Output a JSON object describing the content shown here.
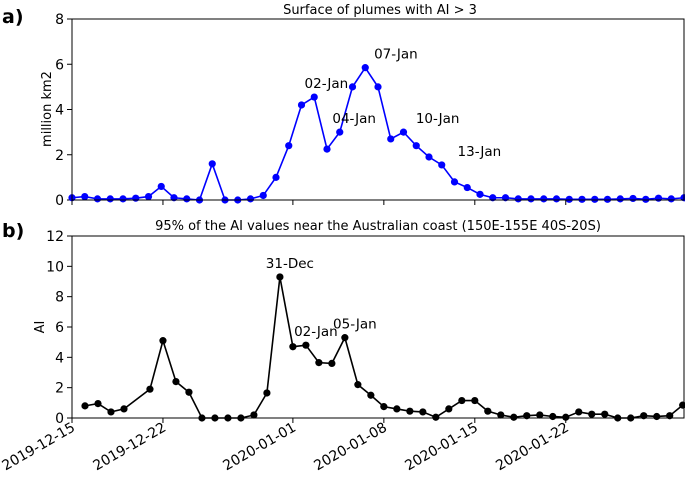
{
  "panel_labels": [
    "a)",
    "b)"
  ],
  "chart_data": [
    {
      "type": "line",
      "title": "Surface of plumes with AI > 3",
      "xlabel": "",
      "ylabel": "million km2",
      "ylim": [
        0,
        8
      ],
      "yticks": [
        0,
        2,
        4,
        6,
        8
      ],
      "xlim": [
        "2019-12-15",
        "2020-01-28"
      ],
      "grid": false,
      "color": "#0000ff",
      "series": [
        {
          "values": [
            0.1,
            0.15,
            0.05,
            0.05,
            0.05,
            0.08,
            0.15,
            0.6,
            0.1,
            0.05,
            0.0,
            1.6,
            0.0,
            0.0,
            0.05,
            0.2,
            1.0,
            2.4,
            4.2,
            4.55,
            2.25,
            3.0,
            5.0,
            5.85,
            5.0,
            2.7,
            3.0,
            2.4,
            1.9,
            1.55,
            0.8,
            0.55,
            0.25,
            0.1,
            0.1,
            0.05,
            0.05,
            0.05,
            0.05,
            0.03,
            0.03,
            0.03,
            0.03,
            0.05,
            0.07,
            0.03,
            0.08,
            0.05,
            0.1
          ]
        }
      ],
      "annotations": [
        {
          "text": "02-Jan",
          "x": "2020-01-02",
          "y": 4.55
        },
        {
          "text": "04-Jan",
          "x": "2020-01-04",
          "y": 3.0
        },
        {
          "text": "07-Jan",
          "x": "2020-01-07",
          "y": 5.85
        },
        {
          "text": "10-Jan",
          "x": "2020-01-10",
          "y": 3.0
        },
        {
          "text": "13-Jan",
          "x": "2020-01-13",
          "y": 1.55
        }
      ]
    },
    {
      "type": "line",
      "title": "95% of the AI values near the Australian coast (150E-155E 40S-20S)",
      "xlabel": "",
      "ylabel": "AI",
      "ylim": [
        0,
        12
      ],
      "yticks": [
        0,
        2,
        4,
        6,
        8,
        10,
        12
      ],
      "xlim": [
        "2019-12-15",
        "2020-01-28"
      ],
      "xticks": [
        "2019-12-15",
        "2019-12-22",
        "2020-01-01",
        "2020-01-08",
        "2020-01-15",
        "2020-01-22"
      ],
      "grid": false,
      "color": "#000000",
      "series": [
        {
          "points": [
            [
              "2019-12-16",
              0.8
            ],
            [
              "2019-12-17",
              0.95
            ],
            [
              "2019-12-18",
              0.4
            ],
            [
              "2019-12-19",
              0.6
            ],
            [
              "2019-12-21",
              1.9
            ],
            [
              "2019-12-22",
              5.1
            ],
            [
              "2019-12-23",
              2.4
            ],
            [
              "2019-12-24",
              1.7
            ],
            [
              "2019-12-25",
              0.0
            ],
            [
              "2019-12-26",
              0.0
            ],
            [
              "2019-12-27",
              0.0
            ],
            [
              "2019-12-28",
              0.0
            ],
            [
              "2019-12-29",
              0.2
            ],
            [
              "2019-12-30",
              1.65
            ],
            [
              "2019-12-31",
              9.3
            ],
            [
              "2020-01-01",
              4.7
            ],
            [
              "2020-01-02",
              4.8
            ],
            [
              "2020-01-03",
              3.65
            ],
            [
              "2020-01-04",
              3.6
            ],
            [
              "2020-01-05",
              5.3
            ],
            [
              "2020-01-06",
              2.2
            ],
            [
              "2020-01-07",
              1.5
            ],
            [
              "2020-01-08",
              0.75
            ],
            [
              "2020-01-09",
              0.6
            ],
            [
              "2020-01-10",
              0.45
            ],
            [
              "2020-01-11",
              0.4
            ],
            [
              "2020-01-12",
              0.05
            ],
            [
              "2020-01-13",
              0.6
            ],
            [
              "2020-01-14",
              1.15
            ],
            [
              "2020-01-15",
              1.15
            ],
            [
              "2020-01-16",
              0.45
            ],
            [
              "2020-01-17",
              0.2
            ],
            [
              "2020-01-18",
              0.05
            ],
            [
              "2020-01-19",
              0.15
            ],
            [
              "2020-01-20",
              0.2
            ],
            [
              "2020-01-21",
              0.1
            ],
            [
              "2020-01-22",
              0.05
            ],
            [
              "2020-01-23",
              0.4
            ],
            [
              "2020-01-24",
              0.25
            ],
            [
              "2020-01-25",
              0.25
            ],
            [
              "2020-01-26",
              0.0
            ],
            [
              "2020-01-27",
              0.0
            ],
            [
              "2020-01-28",
              0.15
            ],
            [
              "2020-01-29",
              0.1
            ],
            [
              "2020-01-30",
              0.15
            ],
            [
              "2020-01-31",
              0.85
            ]
          ]
        }
      ],
      "annotations": [
        {
          "text": "31-Dec",
          "x": "2019-12-31",
          "y": 9.3
        },
        {
          "text": "02-Jan",
          "x": "2020-01-02",
          "y": 4.8
        },
        {
          "text": "05-Jan",
          "x": "2020-01-05",
          "y": 5.3
        }
      ]
    }
  ]
}
